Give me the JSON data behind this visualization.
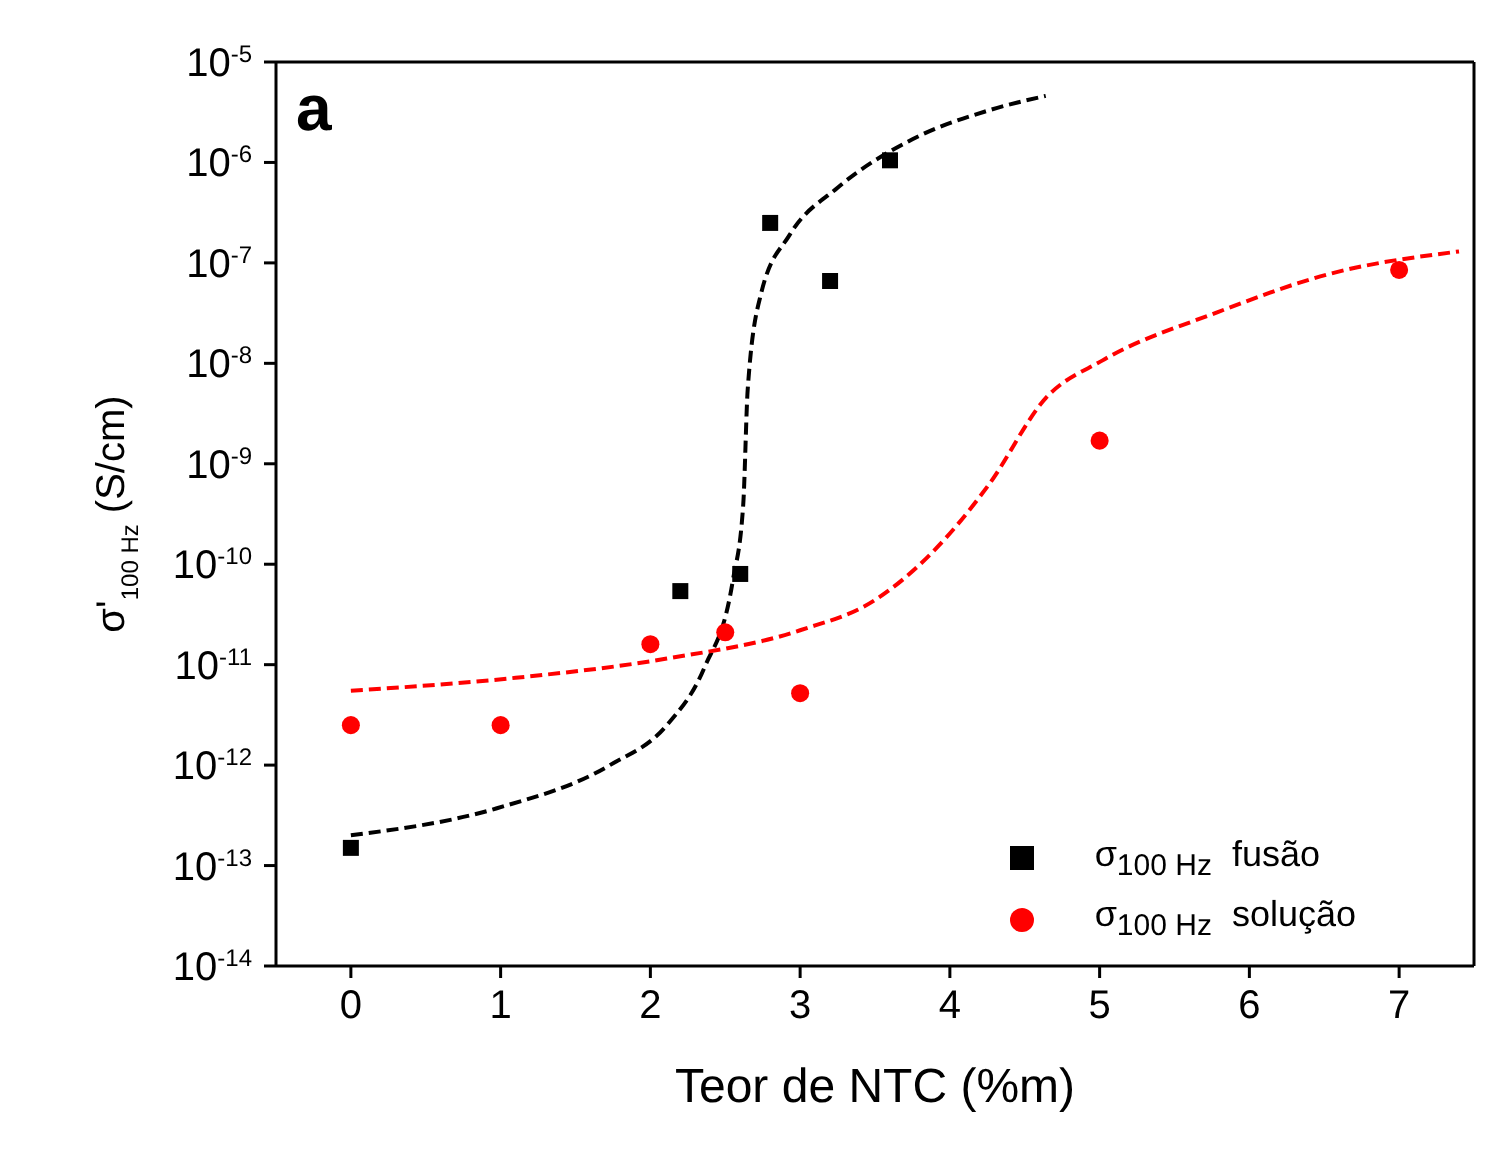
{
  "chart_data": {
    "type": "scatter",
    "xlabel": "Teor de NTC (%m)",
    "ylabel": "σ'$_{100 Hz}$ (S/cm)",
    "annotations": [
      "a"
    ],
    "log": "y",
    "xlim": [
      -0.5,
      7.5
    ],
    "xticks": [
      0,
      1,
      2,
      3,
      4,
      5,
      6,
      7
    ],
    "ylim": [
      1e-14,
      1e-05
    ],
    "yticks": [
      {
        "value": 1e-14,
        "label": "10$^{-14}$"
      },
      {
        "value": 1e-13,
        "label": "10$^{-13}$"
      },
      {
        "value": 1e-12,
        "label": "10$^{-12}$"
      },
      {
        "value": 1e-11,
        "label": "10$^{-11}$"
      },
      {
        "value": 1e-10,
        "label": "10$^{-10}$"
      },
      {
        "value": 1e-09,
        "label": "10$^{-9}$"
      },
      {
        "value": 1e-08,
        "label": "10$^{-8}$"
      },
      {
        "value": 1e-07,
        "label": "10$^{-7}$"
      },
      {
        "value": 1e-06,
        "label": "10$^{-6}$"
      },
      {
        "value": 1e-05,
        "label": "10$^{-5}$"
      }
    ],
    "legend": "bottom right",
    "series": [
      {
        "name": "σ$_{100 Hz}$  fusão",
        "color": "#000000",
        "marker": "square",
        "x": [
          0,
          2.2,
          2.6,
          2.8,
          3.2,
          3.6
        ],
        "values": [
          1.5e-13,
          5.4e-11,
          8e-11,
          2.5e-07,
          6.6e-08,
          1.05e-06
        ]
      },
      {
        "name": "σ$_{100 Hz}$  solução",
        "color": "#ff0000",
        "marker": "circle",
        "x": [
          0,
          1,
          2,
          2.5,
          3,
          5,
          7
        ],
        "values": [
          2.5e-12,
          2.5e-12,
          1.6e-11,
          2.1e-11,
          5.2e-12,
          1.7e-09,
          8.5e-08
        ]
      },
      {
        "type": "line",
        "color": "#000000",
        "line_style": "dashed",
        "x": [
          0,
          0.97,
          1.73,
          2.11,
          2.36,
          2.55,
          2.62,
          2.65,
          2.74,
          2.93,
          3.25,
          3.75,
          4.26,
          4.64
        ],
        "values": [
          2e-13,
          3.7e-13,
          1e-12,
          2.5e-12,
          9.3e-12,
          6.8e-11,
          3.9e-10,
          5.5e-09,
          5e-08,
          1.9e-07,
          5.6e-07,
          1.7e-06,
          3.3e-06,
          4.6e-06
        ]
      },
      {
        "type": "line",
        "color": "#ff0000",
        "line_style": "dashed",
        "x": [
          0,
          1.1,
          2.11,
          3,
          3.5,
          3.88,
          4.26,
          4.64,
          5.02,
          5.78,
          6.54,
          7.4
        ],
        "values": [
          5.5e-12,
          7.4e-12,
          1.15e-11,
          2.2e-11,
          4.4e-11,
          1.3e-10,
          6.2e-10,
          4.5e-09,
          1.07e-08,
          3.2e-08,
          7.8e-08,
          1.3e-07
        ]
      }
    ]
  }
}
